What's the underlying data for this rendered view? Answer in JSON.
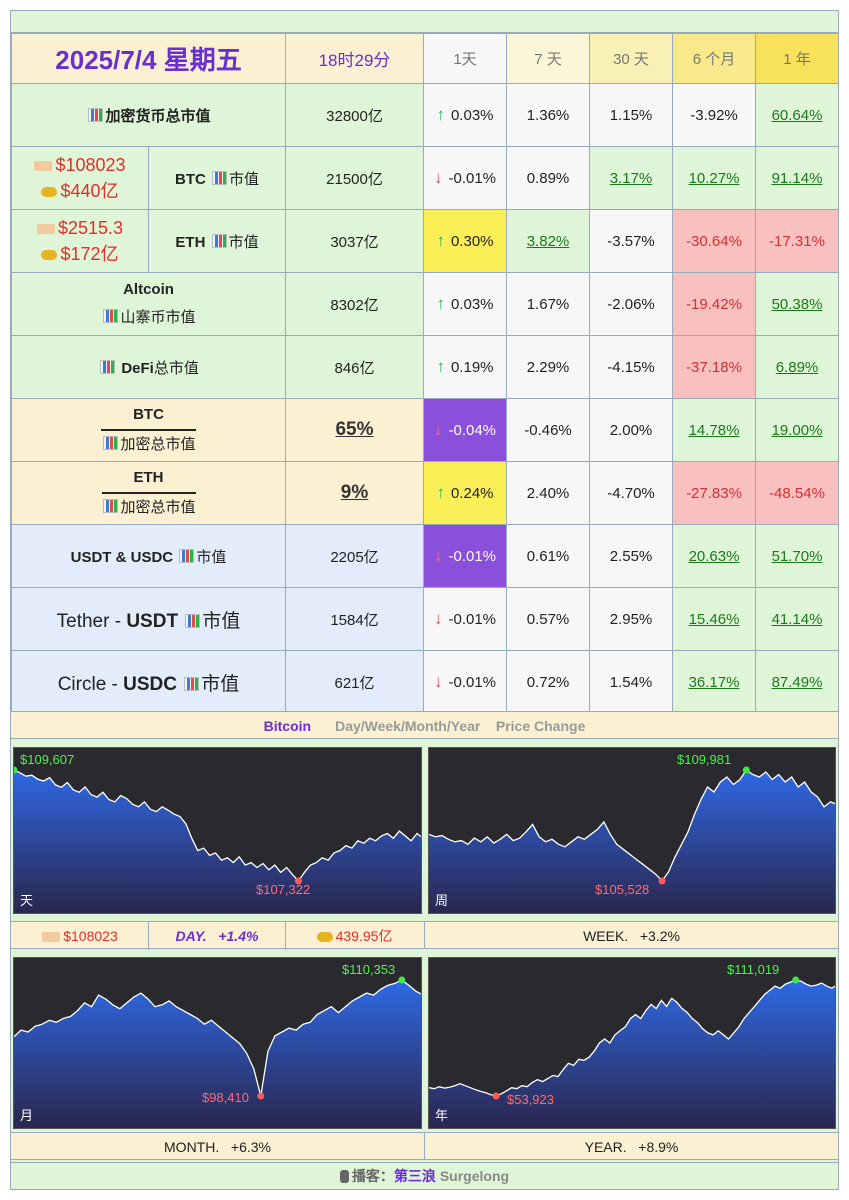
{
  "header": {
    "date": "2025/7/4 星期五",
    "time": "18时29分",
    "periods": [
      "1天",
      "7 天",
      "30 天",
      "6 个月",
      "1 年"
    ]
  },
  "rows": {
    "total": {
      "label": "加密货币总市值",
      "value": "32800亿",
      "arrow": "up",
      "d1": "0.03%",
      "d7": "1.36%",
      "d30": "1.15%",
      "m6": "-3.92%",
      "y1": "60.64%"
    },
    "btc": {
      "price": "$108023",
      "cap": "$440亿",
      "label_a": "BTC",
      "label_b": "市值",
      "value": "21500亿",
      "arrow": "down",
      "d1": "-0.01%",
      "d7": "0.89%",
      "d30": "3.17%",
      "m6": "10.27%",
      "y1": "91.14%"
    },
    "eth": {
      "price": "$2515.3",
      "cap": "$172亿",
      "label_a": "ETH",
      "label_b": "市值",
      "value": "3037亿",
      "arrow": "up",
      "d1": "0.30%",
      "d7": "3.82%",
      "d30": "-3.57%",
      "m6": "-30.64%",
      "y1": "-17.31%"
    },
    "altcoin": {
      "label_a": "Altcoin",
      "label_b": "山寨币市值",
      "value": "8302亿",
      "arrow": "up",
      "d1": "0.03%",
      "d7": "1.67%",
      "d30": "-2.06%",
      "m6": "-19.42%",
      "y1": "50.38%"
    },
    "defi": {
      "label_a": "DeFi",
      "label_b": "总市值",
      "value": "846亿",
      "arrow": "up",
      "d1": "0.19%",
      "d7": "2.29%",
      "d30": "-4.15%",
      "m6": "-37.18%",
      "y1": "6.89%"
    },
    "btc_dom": {
      "label_a": "BTC",
      "label_b": "加密总市值",
      "value": "65%",
      "arrow": "down",
      "d1": "-0.04%",
      "d7": "-0.46%",
      "d30": "2.00%",
      "m6": "14.78%",
      "y1": "19.00%"
    },
    "eth_dom": {
      "label_a": "ETH",
      "label_b": "加密总市值",
      "value": "9%",
      "arrow": "up",
      "d1": "0.24%",
      "d7": "2.40%",
      "d30": "-4.70%",
      "m6": "-27.83%",
      "y1": "-48.54%"
    },
    "stable": {
      "label_a": "USDT & USDC",
      "label_b": "市值",
      "value": "2205亿",
      "arrow": "down",
      "d1": "-0.01%",
      "d7": "0.61%",
      "d30": "2.55%",
      "m6": "20.63%",
      "y1": "51.70%"
    },
    "usdt": {
      "label_pre": "Tether - ",
      "label_a": "USDT",
      "label_b": "市值",
      "value": "1584亿",
      "arrow": "down",
      "d1": "-0.01%",
      "d7": "0.57%",
      "d30": "2.95%",
      "m6": "15.46%",
      "y1": "41.14%"
    },
    "usdc": {
      "label_pre": "Circle - ",
      "label_a": "USDC",
      "label_b": "市值",
      "value": "621亿",
      "arrow": "down",
      "d1": "-0.01%",
      "d7": "0.72%",
      "d30": "1.54%",
      "m6": "36.17%",
      "y1": "87.49%"
    }
  },
  "section": {
    "name": "Bitcoin",
    "subtitle": "Day/Week/Month/Year    Price Change"
  },
  "charts": {
    "day": {
      "period": "天",
      "max": "$109,607",
      "min": "$107,322"
    },
    "week": {
      "period": "周",
      "max": "$109,981",
      "min": "$105,528"
    },
    "month": {
      "period": "月",
      "max": "$110,353",
      "min": "$98,410"
    },
    "year": {
      "period": "年",
      "max": "$111,019",
      "min": "$53,923"
    }
  },
  "info": {
    "price": "$108023",
    "day": "DAY.   +1.4%",
    "vol": "439.95亿",
    "week": "WEEK.   +3.2%",
    "month": "MONTH.   +6.3%",
    "year": "YEAR.   +8.9%"
  },
  "footer": {
    "prefix": "播客：",
    "name": "第三浪",
    "handle": "Surgelong"
  },
  "colors": {
    "accent": "#6a2fcf",
    "up": "#2bb34a",
    "down": "#e54b4b",
    "positive_bg": "#dff5d8",
    "negative_bg": "#f9c0c0",
    "highlight_yellow": "#fbef57",
    "highlight_purple": "#8a4fdb"
  },
  "chart_data": [
    {
      "type": "area",
      "period": "天",
      "max": 109607,
      "min": 107322,
      "values": [
        109607,
        109550,
        109480,
        109500,
        109420,
        109380,
        109450,
        109300,
        109250,
        109350,
        109200,
        109150,
        109260,
        109100,
        109050,
        109150,
        109000,
        108950,
        109080,
        109020,
        108900,
        108850,
        108950,
        108800,
        108750,
        108850,
        108780,
        108700,
        108650,
        108500,
        108200,
        107950,
        108000,
        107850,
        107900,
        107750,
        107800,
        107700,
        107820,
        107650,
        107700,
        107600,
        107680,
        107550,
        107650,
        107500,
        107600,
        107450,
        107322,
        107500,
        107650,
        107700,
        107800,
        107750,
        107900,
        107950,
        108050,
        108000,
        108150,
        108100,
        108200,
        108150,
        108250,
        108300,
        108200,
        108350,
        108250,
        108150,
        108300,
        108200
      ]
    },
    {
      "type": "area",
      "period": "周",
      "max": 109981,
      "min": 105528,
      "values": [
        107400,
        107300,
        107350,
        107200,
        107100,
        107150,
        107000,
        107250,
        107100,
        107300,
        107050,
        107200,
        107400,
        107150,
        107250,
        107500,
        107800,
        107300,
        107100,
        107200,
        107000,
        106900,
        107100,
        107300,
        107200,
        107400,
        107600,
        107900,
        107400,
        107000,
        106800,
        106600,
        106400,
        106200,
        106000,
        105800,
        105528,
        105900,
        106500,
        107000,
        107500,
        108200,
        108800,
        109300,
        109100,
        109500,
        109700,
        109400,
        109600,
        109981,
        109800,
        109700,
        109900,
        109600,
        109800,
        109500,
        109700,
        109300,
        109500,
        109100,
        108900,
        108500,
        108700,
        108600
      ]
    },
    {
      "type": "area",
      "period": "月",
      "max": 110353,
      "min": 98410,
      "values": [
        104500,
        105200,
        105000,
        105600,
        105800,
        106200,
        106000,
        106400,
        106600,
        107200,
        108000,
        107600,
        108800,
        108400,
        107800,
        107400,
        108000,
        108600,
        109000,
        108400,
        107600,
        107800,
        108200,
        107600,
        107200,
        106800,
        106400,
        105800,
        106200,
        105600,
        105000,
        104400,
        103800,
        102800,
        101200,
        98410,
        103000,
        104600,
        105000,
        105400,
        105200,
        105800,
        106000,
        106800,
        107200,
        107600,
        107000,
        107600,
        108200,
        108600,
        109000,
        108800,
        109400,
        109800,
        110000,
        110353,
        109800,
        109200,
        108800
      ]
    },
    {
      "type": "area",
      "period": "年",
      "max": 111019,
      "min": 53923,
      "values": [
        58000,
        57500,
        58500,
        57800,
        58200,
        59000,
        60000,
        59000,
        58000,
        57000,
        56200,
        55500,
        54500,
        53923,
        55000,
        56500,
        58000,
        57500,
        59000,
        58500,
        60500,
        62000,
        61000,
        62500,
        64000,
        63500,
        67000,
        70000,
        69000,
        72000,
        71500,
        73000,
        76000,
        80000,
        82000,
        80000,
        84000,
        86000,
        88000,
        92000,
        94000,
        92000,
        96000,
        99000,
        97000,
        101000,
        98000,
        102000,
        100000,
        97000,
        95000,
        92000,
        90000,
        87000,
        85000,
        84000,
        86000,
        84000,
        82000,
        85000,
        88000,
        92000,
        95000,
        98000,
        101000,
        104000,
        106000,
        108000,
        107000,
        109000,
        110000,
        111019,
        110500,
        109000,
        108000,
        108500,
        109500,
        108000,
        107000,
        108500
      ]
    }
  ]
}
